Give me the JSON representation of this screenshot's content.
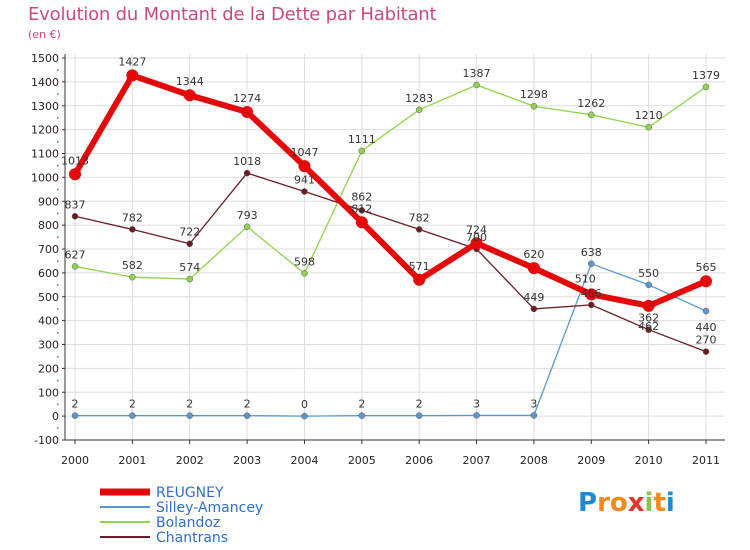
{
  "title": "Evolution du Montant de la Dette par Habitant",
  "unit": "(en €)",
  "logo": {
    "text": "Proxiti",
    "letters": [
      "P",
      "r",
      "o",
      "x",
      "i",
      "t",
      "i"
    ],
    "colors": [
      "#1e8ad6",
      "#f08a1c",
      "#f08a1c",
      "#e8342a",
      "#8bc34a",
      "#f08a1c",
      "#1e8ad6"
    ]
  },
  "colors": {
    "REUGNEY": "#e5080a",
    "Silley-Amancey": "#5b97cc",
    "Bolandoz": "#8fd34e",
    "Chantrans": "#6b1d22",
    "grid": "#dddddd",
    "axis": "#333333"
  },
  "chart_data": {
    "type": "line",
    "title": "Evolution du Montant de la Dette par Habitant",
    "ylabel": "(en €)",
    "x": [
      "2000",
      "2001",
      "2002",
      "2003",
      "2004",
      "2005",
      "2006",
      "2007",
      "2008",
      "2009",
      "2010",
      "2011"
    ],
    "ylim": [
      -100,
      1500
    ],
    "yticks": [
      -100,
      0,
      100,
      200,
      300,
      400,
      500,
      600,
      700,
      800,
      900,
      1000,
      1100,
      1200,
      1300,
      1400,
      1500
    ],
    "grid": true,
    "legend_position": "bottom-left",
    "series": [
      {
        "name": "REUGNEY",
        "values": [
          1013,
          1427,
          1344,
          1274,
          1047,
          812,
          571,
          724,
          620,
          510,
          462,
          565
        ],
        "labels": [
          "1013",
          "1427",
          "1344",
          "1274",
          "1047",
          "812",
          "571",
          "724",
          "620",
          "510",
          "462",
          "565"
        ]
      },
      {
        "name": "Silley-Amancey",
        "values": [
          2,
          2,
          2,
          2,
          0,
          2,
          2,
          3,
          3,
          638,
          550,
          440
        ],
        "labels": [
          "2",
          "2",
          "2",
          "2",
          "0",
          "2",
          "2",
          "3",
          "3",
          "638",
          "550",
          "440"
        ]
      },
      {
        "name": "Bolandoz",
        "values": [
          627,
          582,
          574,
          793,
          598,
          1111,
          1283,
          1387,
          1298,
          1262,
          1210,
          1379
        ],
        "labels": [
          "627",
          "582",
          "574",
          "793",
          "598",
          "1111",
          "1283",
          "1387",
          "1298",
          "1262",
          "1210",
          "1379"
        ]
      },
      {
        "name": "Chantrans",
        "values": [
          837,
          782,
          722,
          1018,
          941,
          862,
          782,
          700,
          449,
          466,
          362,
          270
        ],
        "labels": [
          "837",
          "782",
          "722",
          "1018",
          "941",
          "862",
          "782",
          "700",
          "449",
          "466",
          "362",
          "270"
        ]
      }
    ]
  }
}
